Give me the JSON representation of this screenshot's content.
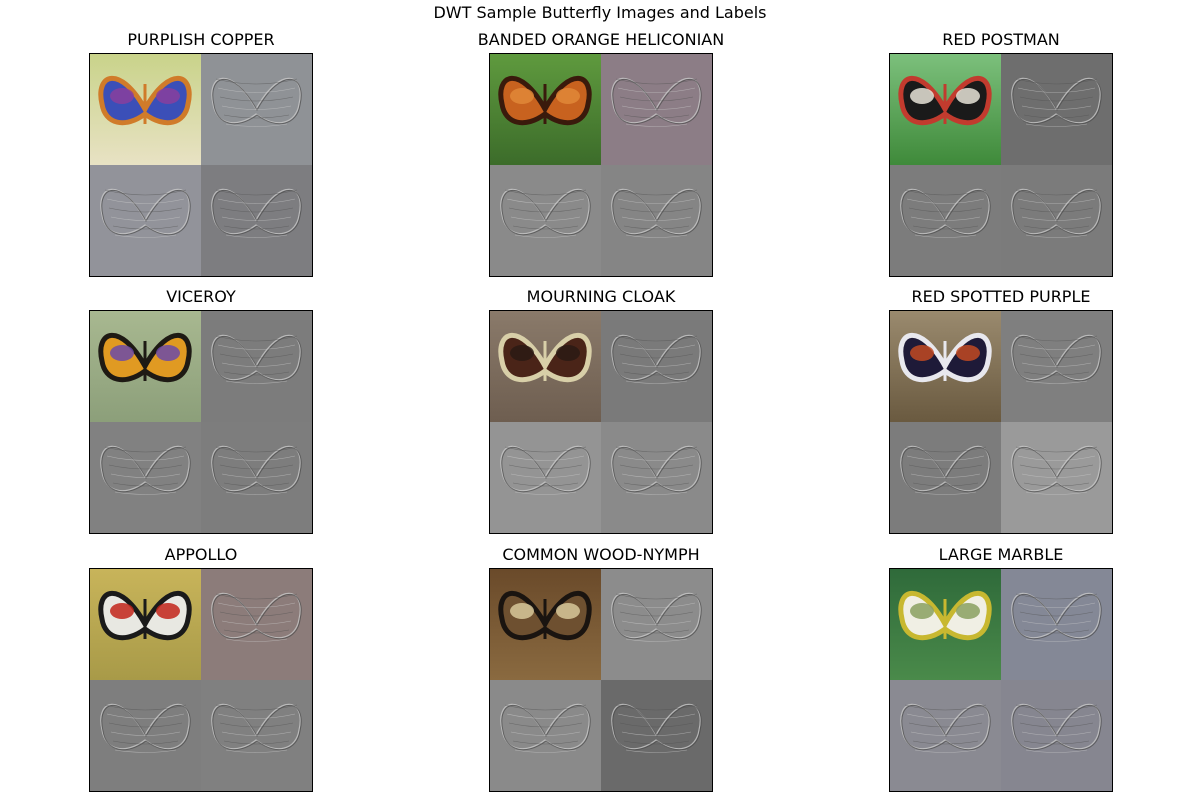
{
  "figure": {
    "title": "DWT Sample Butterfly Images and Labels"
  },
  "panels": [
    {
      "label": "PURPLISH COPPER",
      "approx": {
        "bg_top": "#c9d38a",
        "bg_bottom": "#e8e2c4",
        "wing_a": "#3b4fb8",
        "wing_b": "#d07b2a",
        "wing_c": "#8a3e9c"
      },
      "detail_tint": [
        "#8f9296",
        "#92939a",
        "#7d7d80"
      ]
    },
    {
      "label": "BANDED ORANGE HELICONIAN",
      "approx": {
        "bg_top": "#5f9a3e",
        "bg_bottom": "#3c6c2a",
        "wing_a": "#c8621f",
        "wing_b": "#3a1a0c",
        "wing_c": "#e08838"
      },
      "detail_tint": [
        "#8c7d86",
        "#8a8a8a",
        "#858585"
      ]
    },
    {
      "label": "RED POSTMAN",
      "approx": {
        "bg_top": "#7cc07c",
        "bg_bottom": "#3f8a3a",
        "wing_a": "#1a1a1a",
        "wing_b": "#c23b2e",
        "wing_c": "#e8e4d8"
      },
      "detail_tint": [
        "#6e6e6e",
        "#7c7c7c",
        "#7b7b7b"
      ]
    },
    {
      "label": "VICEROY",
      "approx": {
        "bg_top": "#a8b890",
        "bg_bottom": "#8c9f7a",
        "wing_a": "#e09a22",
        "wing_b": "#1e1a14",
        "wing_c": "#6b4aa8"
      },
      "detail_tint": [
        "#7c7c7c",
        "#818181",
        "#7d7d7d"
      ]
    },
    {
      "label": "MOURNING CLOAK",
      "approx": {
        "bg_top": "#8a7a6a",
        "bg_bottom": "#6e5e50",
        "wing_a": "#4a2418",
        "wing_b": "#d8cfa8",
        "wing_c": "#2a1a14"
      },
      "detail_tint": [
        "#7a7a7a",
        "#949494",
        "#8a8a8a"
      ]
    },
    {
      "label": "RED SPOTTED PURPLE",
      "approx": {
        "bg_top": "#9a8a6e",
        "bg_bottom": "#6a5a40",
        "wing_a": "#1e1a38",
        "wing_b": "#e8e8ee",
        "wing_c": "#c24a22"
      },
      "detail_tint": [
        "#7f7f7f",
        "#7c7c7c",
        "#9a9a9a"
      ]
    },
    {
      "label": "APPOLLO",
      "approx": {
        "bg_top": "#c8b45a",
        "bg_bottom": "#a89a48",
        "wing_a": "#e8e8e2",
        "wing_b": "#1a1a1a",
        "wing_c": "#c2241a"
      },
      "detail_tint": [
        "#8c7c7a",
        "#7e7e7e",
        "#808080"
      ]
    },
    {
      "label": "COMMON WOOD-NYMPH",
      "approx": {
        "bg_top": "#6a4a2a",
        "bg_bottom": "#8a6a40",
        "wing_a": "#6e5030",
        "wing_b": "#1a1410",
        "wing_c": "#d8c89a"
      },
      "detail_tint": [
        "#8c8c8c",
        "#8a8a8a",
        "#6a6a6a"
      ]
    },
    {
      "label": "LARGE MARBLE",
      "approx": {
        "bg_top": "#2f6a3a",
        "bg_bottom": "#4a8a4a",
        "wing_a": "#f0efe4",
        "wing_b": "#c8b830",
        "wing_c": "#8aa060"
      },
      "detail_tint": [
        "#848896",
        "#8a8a92",
        "#868690"
      ]
    }
  ]
}
